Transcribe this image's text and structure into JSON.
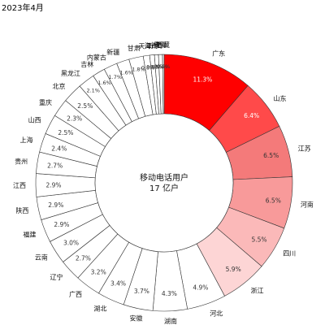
{
  "date_label": "2023年4月",
  "chart_data": {
    "type": "pie",
    "subtype": "donut",
    "center_label": [
      "移动电话用户",
      "17 亿户"
    ],
    "slices": [
      {
        "label": "广东",
        "value": 11.3,
        "value_label": "11.3%",
        "color": "#ff0000"
      },
      {
        "label": "山东",
        "value": 6.4,
        "value_label": "6.4%",
        "color": "#ff4a4a"
      },
      {
        "label": "江苏",
        "value": 6.5,
        "value_label": "6.5%",
        "color": "#f47a7a"
      },
      {
        "label": "河南",
        "value": 6.5,
        "value_label": "6.5%",
        "color": "#f89a9a"
      },
      {
        "label": "四川",
        "value": 5.5,
        "value_label": "5.5%",
        "color": "#fbb9b9"
      },
      {
        "label": "浙江",
        "value": 5.9,
        "value_label": "5.9%",
        "color": "#fdd5d5"
      },
      {
        "label": "河北",
        "value": 4.9,
        "value_label": "4.9%",
        "color": "#ffffff"
      },
      {
        "label": "湖南",
        "value": 4.3,
        "value_label": "4.3%",
        "color": "#ffffff"
      },
      {
        "label": "安徽",
        "value": 3.7,
        "value_label": "3.7%",
        "color": "#ffffff"
      },
      {
        "label": "湖北",
        "value": 3.4,
        "value_label": "3.4%",
        "color": "#ffffff"
      },
      {
        "label": "广西",
        "value": 3.2,
        "value_label": "3.2%",
        "color": "#ffffff"
      },
      {
        "label": "辽宁",
        "value": 2.7,
        "value_label": "2.7%",
        "color": "#ffffff"
      },
      {
        "label": "云南",
        "value": 3.0,
        "value_label": "3.0%",
        "color": "#ffffff"
      },
      {
        "label": "福建",
        "value": 2.9,
        "value_label": "2.9%",
        "color": "#ffffff"
      },
      {
        "label": "陕西",
        "value": 2.9,
        "value_label": "2.9%",
        "color": "#ffffff"
      },
      {
        "label": "江西",
        "value": 2.9,
        "value_label": "2.9%",
        "color": "#ffffff"
      },
      {
        "label": "贵州",
        "value": 2.7,
        "value_label": "2.7%",
        "color": "#ffffff"
      },
      {
        "label": "上海",
        "value": 2.4,
        "value_label": "2.4%",
        "color": "#ffffff"
      },
      {
        "label": "山西",
        "value": 2.5,
        "value_label": "2.5%",
        "color": "#ffffff"
      },
      {
        "label": "重庆",
        "value": 2.3,
        "value_label": "2.3%",
        "color": "#ffffff"
      },
      {
        "label": "北京",
        "value": 2.5,
        "value_label": "2.5%",
        "color": "#ffffff"
      },
      {
        "label": "黑龙江",
        "value": 2.1,
        "value_label": "2.1%",
        "color": "#ffffff"
      },
      {
        "label": "吉林",
        "value": 1.6,
        "value_label": "1.6%",
        "color": "#ffffff"
      },
      {
        "label": "内蒙古",
        "value": 1.7,
        "value_label": "1.7%",
        "color": "#ffffff"
      },
      {
        "label": "新疆",
        "value": 1.6,
        "value_label": "1.6%",
        "color": "#ffffff"
      },
      {
        "label": "甘肃",
        "value": 1.8,
        "value_label": "1.8%",
        "color": "#ffffff"
      },
      {
        "label": "天津",
        "value": 0.8,
        "value_label": "0.8%",
        "color": "#ffffff"
      },
      {
        "label": "海南",
        "value": 0.6,
        "value_label": "0.6%",
        "color": "#ffffff"
      },
      {
        "label": "宁夏",
        "value": 0.5,
        "value_label": "0.5%",
        "color": "#ffffff"
      },
      {
        "label": "青海",
        "value": 0.5,
        "value_label": "0.5%",
        "color": "#ffffff"
      },
      {
        "label": "西藏",
        "value": 0.2,
        "value_label": "0.2%",
        "color": "#ffffff"
      }
    ],
    "start_angle_deg": 0,
    "direction": "clockwise",
    "legend": "none"
  }
}
